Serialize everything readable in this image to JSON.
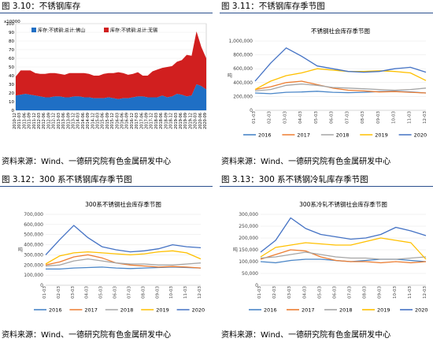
{
  "figures": [
    {
      "label": "图 3.10：不锈钢库存",
      "source": "资料来源：Wind、一德研究院有色金属研发中心"
    },
    {
      "label": "图 3.11：不锈钢库存季节图",
      "source": "资料来源：Wind、一德研究院有色金属研发中心"
    },
    {
      "label": "图 3.12：300 系不锈钢库存季节图",
      "source": "资料来源：Wind、一德研究院有色金属研发中心"
    },
    {
      "label": "图 3.13：300 系不锈钢冷轧库存季节图",
      "source": "资料来源：Wind、一德研究院有色金属研发中心"
    }
  ],
  "chart_data": [
    {
      "type": "area",
      "title": "",
      "yunit": "x10000",
      "ylim": [
        0,
        100
      ],
      "yticks": [
        0,
        10,
        20,
        30,
        40,
        50,
        60,
        70,
        80,
        90,
        100
      ],
      "xlabels": [
        "2010-12",
        "2011-03",
        "2011-06",
        "2011-09",
        "2011-12",
        "2012-03",
        "2012-06",
        "2012-09",
        "2012-12",
        "2013-03",
        "2013-06",
        "2013-09",
        "2013-12",
        "2014-03",
        "2014-06",
        "2014-09",
        "2014-12",
        "2015-03",
        "2015-06",
        "2015-09",
        "2015-12",
        "2016-03",
        "2016-06",
        "2016-09",
        "2016-12",
        "2017-03",
        "2017-06",
        "2017-09",
        "2017-12",
        "2018-03",
        "2018-06",
        "2018-09",
        "2018-12",
        "2019-03",
        "2019-06",
        "2019-09",
        "2019-12",
        "2020-03",
        "2020-06",
        "2020-09"
      ],
      "legend_position": "top",
      "stacked": true,
      "series": [
        {
          "name": "库存:不锈钢:总计:佛山",
          "color": "#1f6fc5",
          "values": [
            17,
            18,
            19,
            18,
            17,
            16,
            15,
            15,
            16,
            16,
            15,
            15,
            16,
            16,
            15,
            15,
            14,
            14,
            14,
            15,
            14,
            13,
            14,
            14,
            15,
            16,
            16,
            15,
            15,
            15,
            17,
            15,
            16,
            19,
            18,
            16,
            17,
            30,
            28,
            24
          ]
        },
        {
          "name": "库存:不锈钢:总计:无锡",
          "color": "#d11f1f",
          "values": [
            22,
            28,
            27,
            28,
            26,
            26,
            27,
            28,
            27,
            26,
            26,
            28,
            27,
            27,
            28,
            27,
            26,
            26,
            28,
            28,
            29,
            31,
            29,
            27,
            27,
            28,
            24,
            25,
            30,
            32,
            32,
            35,
            35,
            37,
            40,
            48,
            46,
            61,
            45,
            36
          ]
        }
      ]
    },
    {
      "type": "line",
      "title": "不锈钢社会库存季节图",
      "ylabel": "吨",
      "ylim": [
        0,
        1000000
      ],
      "ytick_labels": [
        "0",
        "200,000",
        "400,000",
        "600,000",
        "800,000",
        "1,000,000"
      ],
      "xlabels": [
        "01-03",
        "02-03",
        "03-03",
        "04-03",
        "05-03",
        "06-03",
        "07-03",
        "08-03",
        "09-03",
        "10-03",
        "11-03",
        "12-03"
      ],
      "series": [
        {
          "name": "2016",
          "color": "#4a86c8",
          "values": [
            250000,
            240000,
            260000,
            265000,
            275000,
            260000,
            255000,
            260000,
            270000,
            275000,
            265000,
            250000
          ]
        },
        {
          "name": "2017",
          "color": "#ed7d31",
          "values": [
            300000,
            340000,
            400000,
            420000,
            370000,
            320000,
            290000,
            280000,
            265000,
            270000,
            260000,
            250000
          ]
        },
        {
          "name": "2018",
          "color": "#a5a5a5",
          "values": [
            280000,
            300000,
            360000,
            380000,
            360000,
            330000,
            320000,
            310000,
            300000,
            290000,
            300000,
            320000
          ]
        },
        {
          "name": "2019",
          "color": "#ffc000",
          "values": [
            300000,
            420000,
            500000,
            540000,
            600000,
            580000,
            560000,
            560000,
            570000,
            560000,
            540000,
            430000
          ]
        },
        {
          "name": "2020",
          "color": "#4472c4",
          "values": [
            420000,
            680000,
            900000,
            780000,
            640000,
            600000,
            560000,
            550000,
            560000,
            600000,
            620000,
            550000
          ]
        }
      ]
    },
    {
      "type": "line",
      "title": "300系不锈钢社会库存季节图",
      "ylabel": "吨",
      "ylim": [
        0,
        700000
      ],
      "ytick_labels": [
        "0",
        "100,000",
        "200,000",
        "300,000",
        "400,000",
        "500,000",
        "600,000",
        "700,000"
      ],
      "xlabels": [
        "01-03",
        "02-03",
        "03-03",
        "04-03",
        "05-03",
        "06-03",
        "07-03",
        "08-03",
        "09-03",
        "10-03",
        "11-03",
        "12-03"
      ],
      "series": [
        {
          "name": "2016",
          "color": "#4a86c8",
          "values": [
            160000,
            160000,
            170000,
            175000,
            180000,
            170000,
            165000,
            170000,
            175000,
            180000,
            175000,
            170000
          ]
        },
        {
          "name": "2017",
          "color": "#ed7d31",
          "values": [
            200000,
            230000,
            280000,
            300000,
            270000,
            220000,
            200000,
            190000,
            180000,
            185000,
            180000,
            170000
          ]
        },
        {
          "name": "2018",
          "color": "#a5a5a5",
          "values": [
            190000,
            200000,
            240000,
            260000,
            240000,
            220000,
            210000,
            210000,
            200000,
            200000,
            210000,
            220000
          ]
        },
        {
          "name": "2019",
          "color": "#ffc000",
          "values": [
            210000,
            290000,
            320000,
            330000,
            320000,
            310000,
            300000,
            310000,
            330000,
            340000,
            320000,
            260000
          ]
        },
        {
          "name": "2020",
          "color": "#4472c4",
          "values": [
            300000,
            450000,
            590000,
            470000,
            380000,
            350000,
            330000,
            340000,
            360000,
            400000,
            380000,
            370000
          ]
        }
      ]
    },
    {
      "type": "line",
      "title": "300系冷轧不锈钢社会库存季节图",
      "ylabel": "吨",
      "ylim": [
        0,
        300000
      ],
      "ytick_labels": [
        "0",
        "50,000",
        "100,000",
        "150,000",
        "200,000",
        "250,000",
        "300,000"
      ],
      "xlabels": [
        "01-03",
        "02-03",
        "03-03",
        "04-03",
        "05-03",
        "06-03",
        "07-03",
        "08-03",
        "09-03",
        "10-03",
        "11-03",
        "12-03"
      ],
      "series": [
        {
          "name": "2016",
          "color": "#4a86c8",
          "values": [
            100000,
            95000,
            105000,
            110000,
            110000,
            105000,
            100000,
            105000,
            110000,
            110000,
            105000,
            100000
          ]
        },
        {
          "name": "2017",
          "color": "#ed7d31",
          "values": [
            110000,
            130000,
            150000,
            145000,
            120000,
            105000,
            100000,
            100000,
            95000,
            100000,
            95000,
            100000
          ]
        },
        {
          "name": "2018",
          "color": "#a5a5a5",
          "values": [
            115000,
            120000,
            130000,
            140000,
            130000,
            120000,
            115000,
            115000,
            110000,
            110000,
            115000,
            120000
          ]
        },
        {
          "name": "2019",
          "color": "#ffc000",
          "values": [
            120000,
            160000,
            170000,
            180000,
            175000,
            170000,
            170000,
            185000,
            200000,
            190000,
            180000,
            110000
          ]
        },
        {
          "name": "2020",
          "color": "#4472c4",
          "values": [
            140000,
            190000,
            285000,
            240000,
            215000,
            205000,
            195000,
            200000,
            215000,
            245000,
            230000,
            210000
          ]
        }
      ]
    }
  ]
}
